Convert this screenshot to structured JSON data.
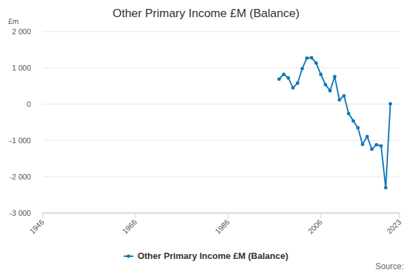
{
  "chart_data": {
    "type": "line",
    "title": "Other Primary Income £M (Balance)",
    "y_label": "£m",
    "source": "Source:",
    "x": [
      1997,
      1998,
      1999,
      2000,
      2001,
      2002,
      2003,
      2004,
      2005,
      2006,
      2007,
      2008,
      2009,
      2010,
      2011,
      2012,
      2013,
      2014,
      2015,
      2016,
      2017,
      2018,
      2019,
      2020,
      2021
    ],
    "series": [
      {
        "name": "Other Primary Income £M (Balance)",
        "color": "#0e77b6",
        "marker": "circle",
        "values": [
          690,
          820,
          720,
          450,
          580,
          980,
          1270,
          1280,
          1130,
          820,
          540,
          370,
          760,
          120,
          230,
          -260,
          -460,
          -650,
          -1110,
          -890,
          -1240,
          -1120,
          -1150,
          -2300,
          10
        ]
      }
    ],
    "xlim": [
      1946,
      2023
    ],
    "xticks": [
      1946,
      1966,
      1986,
      2006,
      2023
    ],
    "ylim": [
      -3000,
      2000
    ],
    "yticks": [
      {
        "value": -3000,
        "label": "-3 000"
      },
      {
        "value": -2000,
        "label": "-2 000"
      },
      {
        "value": -1000,
        "label": "-1 000"
      },
      0,
      {
        "value": 1000,
        "label": "1 000"
      },
      {
        "value": 2000,
        "label": "2 000"
      }
    ],
    "grid": true,
    "legend": "bottom"
  }
}
